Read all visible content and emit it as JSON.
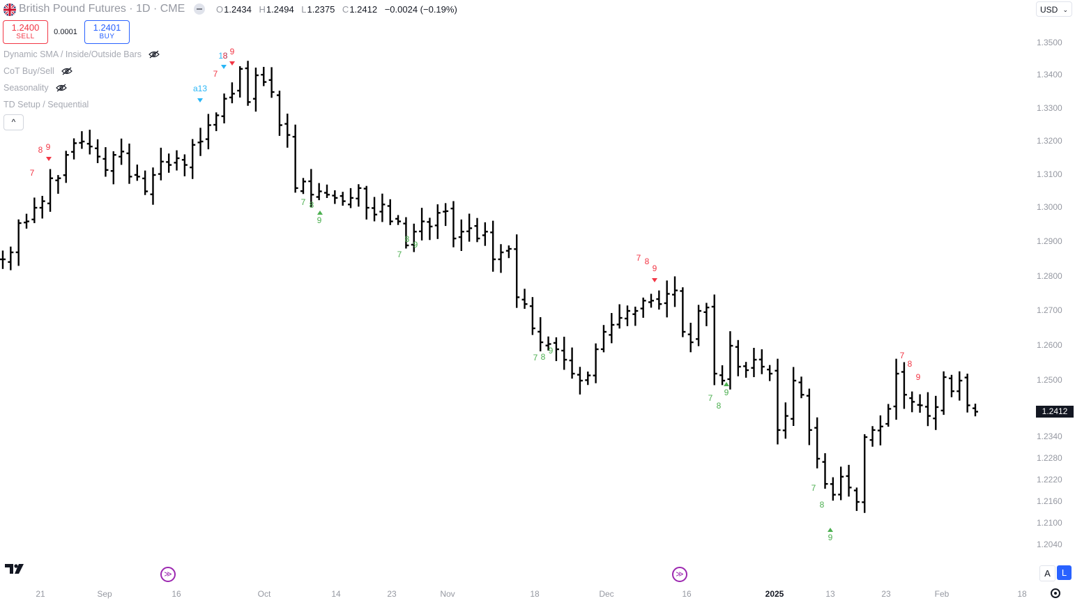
{
  "symbol": {
    "title": "British Pound Futures · 1D · CME",
    "flag_icon": "uk-flag-icon"
  },
  "ohlc": {
    "open_label": "O",
    "open": "1.2434",
    "high_label": "H",
    "high": "1.2494",
    "low_label": "L",
    "low": "1.2375",
    "close_label": "C",
    "close": "1.2412",
    "change": "−0.0024 (−0.19%)"
  },
  "trade": {
    "sell_price": "1.2400",
    "sell_label": "SELL",
    "spread": "0.0001",
    "buy_price": "1.2401",
    "buy_label": "BUY"
  },
  "indicators": [
    {
      "name": "Dynamic SMA / Inside/Outside Bars",
      "hidden": true
    },
    {
      "name": "CoT Buy/Sell",
      "hidden": true
    },
    {
      "name": "Seasonality",
      "hidden": true
    },
    {
      "name": "TD Setup / Sequential",
      "hidden": false
    }
  ],
  "collapse_glyph": "^",
  "currency": "USD",
  "current_price": "1.2412",
  "price_axis": [
    "1.3500",
    "1.3400",
    "1.3300",
    "1.3200",
    "1.3100",
    "1.3000",
    "1.2900",
    "1.2800",
    "1.2700",
    "1.2600",
    "1.2500",
    "1.2340",
    "1.2280",
    "1.2220",
    "1.2160",
    "1.2100",
    "1.2040"
  ],
  "time_axis": [
    "21",
    "Sep",
    "16",
    "Oct",
    "14",
    "23",
    "Nov",
    "18",
    "Dec",
    "16",
    "2025",
    "13",
    "23",
    "Feb",
    "18"
  ],
  "bottom_buttons": {
    "auto": "A",
    "log": "L"
  },
  "colors": {
    "bars": "#000000",
    "buy_setup": "#4caf50",
    "sell_setup": "#f23645",
    "countdown": "#29b6f6",
    "event_icon": "#9c27b0"
  },
  "chart_data": {
    "type": "ohlc",
    "symbol": "British Pound Futures",
    "interval": "1D",
    "exchange": "CME",
    "ylim": [
      1.204,
      1.35
    ],
    "closes": [
      1.285,
      1.287,
      1.2955,
      1.296,
      1.3,
      1.302,
      1.309,
      1.309,
      1.316,
      1.3195,
      1.32,
      1.3185,
      1.3155,
      1.3115,
      1.316,
      1.317,
      1.3095,
      1.3095,
      1.305,
      1.31,
      1.314,
      1.313,
      1.315,
      1.313,
      1.319,
      1.32,
      1.325,
      1.328,
      1.333,
      1.3345,
      1.342,
      1.332,
      1.34,
      1.338,
      1.335,
      1.325,
      1.322,
      1.306,
      1.308,
      1.304,
      1.305,
      1.304,
      1.303,
      1.302,
      1.303,
      1.306,
      1.3,
      1.298,
      1.301,
      1.296,
      1.296,
      1.289,
      1.293,
      1.296,
      1.2945,
      1.2985,
      1.299,
      1.291,
      1.293,
      1.294,
      1.291,
      1.293,
      1.285,
      1.287,
      1.288,
      1.274,
      1.272,
      1.265,
      1.261,
      1.2605,
      1.259,
      1.256,
      1.252,
      1.25,
      1.2515,
      1.259,
      1.264,
      1.266,
      1.268,
      1.27,
      1.27,
      1.273,
      1.273,
      1.272,
      1.275,
      1.276,
      1.264,
      1.261,
      1.27,
      1.271,
      1.252,
      1.25,
      1.26,
      1.254,
      1.253,
      1.256,
      1.254,
      1.252,
      1.236,
      1.24,
      1.25,
      1.246,
      1.236,
      1.228,
      1.221,
      1.218,
      1.223,
      1.22,
      1.216,
      1.234,
      1.236,
      1.237,
      1.242,
      1.252,
      1.246,
      1.244,
      1.243,
      1.24,
      1.2425,
      1.251,
      1.247,
      1.25,
      1.243,
      1.2412
    ],
    "td_annotations": [
      {
        "text": "7",
        "type": "sell-setup"
      },
      {
        "text": "8",
        "type": "sell-setup"
      },
      {
        "text": "9",
        "type": "sell-setup"
      },
      {
        "text": "a13",
        "type": "countdown"
      },
      {
        "text": "7",
        "type": "sell-setup"
      },
      {
        "text": "13",
        "type": "countdown"
      },
      {
        "text": "8",
        "type": "sell-setup"
      },
      {
        "text": "9",
        "type": "sell-setup"
      },
      {
        "text": "7",
        "type": "buy-setup"
      },
      {
        "text": "8",
        "type": "buy-setup"
      },
      {
        "text": "9",
        "type": "buy-setup"
      },
      {
        "text": "7",
        "type": "buy-setup"
      },
      {
        "text": "8",
        "type": "buy-setup"
      },
      {
        "text": "9",
        "type": "buy-setup"
      },
      {
        "text": "7",
        "type": "sell-setup"
      },
      {
        "text": "8",
        "type": "sell-setup"
      },
      {
        "text": "9",
        "type": "sell-setup"
      },
      {
        "text": "7",
        "type": "buy-setup"
      },
      {
        "text": "8",
        "type": "buy-setup"
      },
      {
        "text": "9",
        "type": "buy-setup"
      },
      {
        "text": "7",
        "type": "buy-setup"
      },
      {
        "text": "8",
        "type": "buy-setup"
      },
      {
        "text": "9",
        "type": "buy-setup"
      },
      {
        "text": "7",
        "type": "buy-setup"
      },
      {
        "text": "8",
        "type": "buy-setup"
      },
      {
        "text": "9",
        "type": "buy-setup"
      },
      {
        "text": "7",
        "type": "sell-setup"
      },
      {
        "text": "8",
        "type": "sell-setup"
      },
      {
        "text": "9",
        "type": "sell-setup"
      }
    ]
  }
}
